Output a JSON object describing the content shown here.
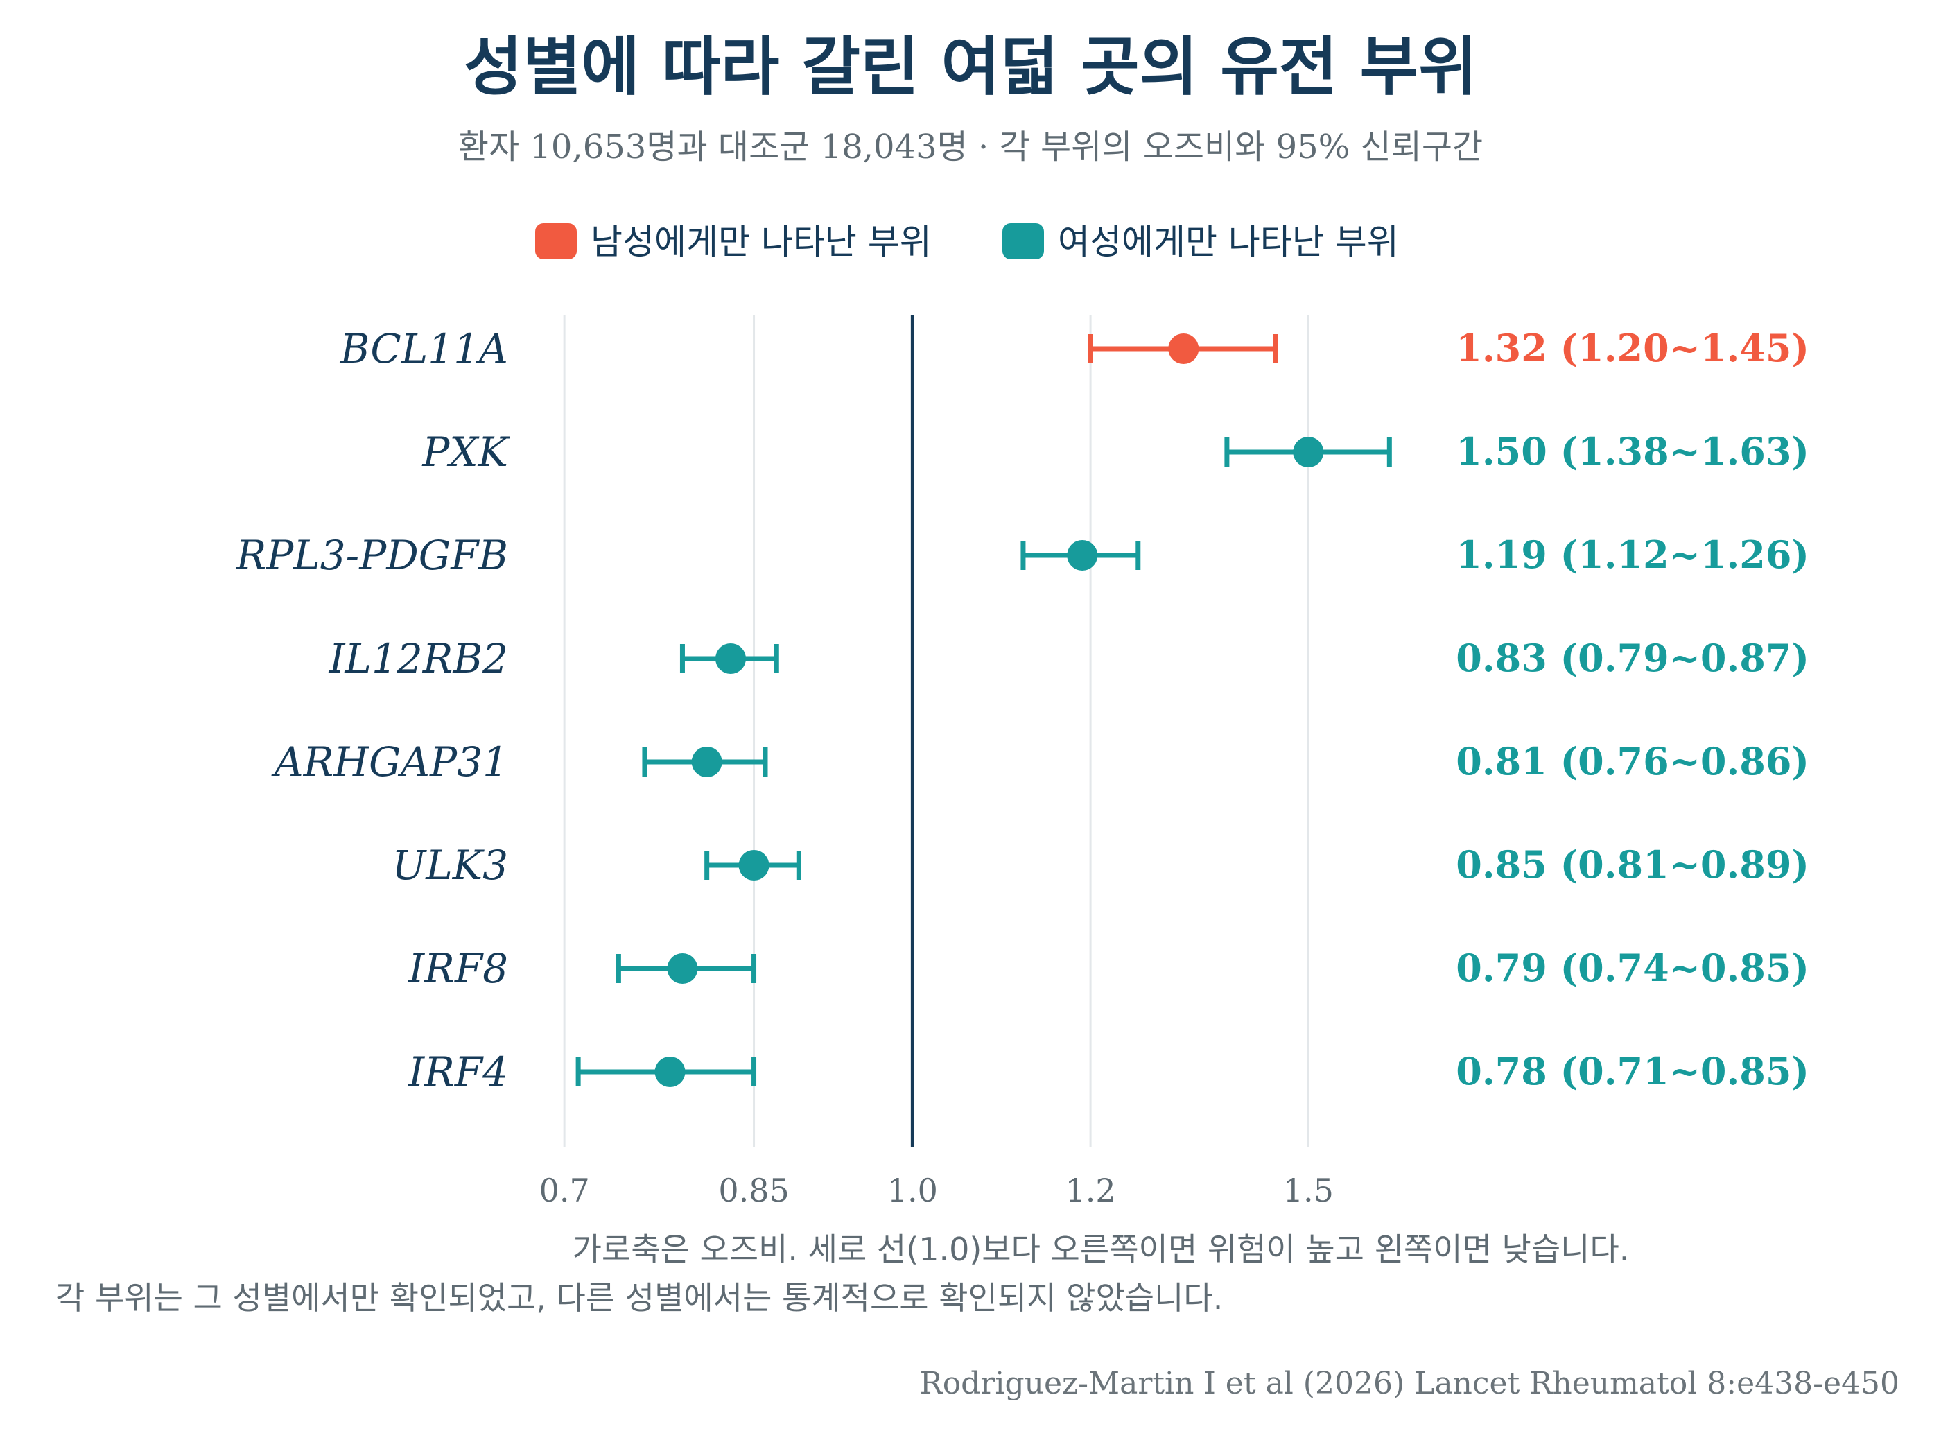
{
  "title": "성별에 따라 갈린 여덟 곳의 유전 부위",
  "subtitle": "환자 10,653명과 대조군 18,043명 · 각 부위의 오즈비와 95% 신뢰구간",
  "legend": [
    {
      "label": "남성에게만 나타난 부위",
      "color": "#f15a40"
    },
    {
      "label": "여성에게만 나타난 부위",
      "color": "#179b9b"
    }
  ],
  "notes": {
    "axis_explanation": "가로축은 오즈비. 세로 선(1.0)보다 오른쪽이면 위험이 높고 왼쪽이면 낮습니다.",
    "specificity": "각 부위는 그 성별에서만 확인되었고, 다른 성별에서는 통계적으로 확인되지 않았습니다."
  },
  "source": "Rodriguez-Martin I et al (2026) Lancet Rheumatol 8:e438-e450",
  "chart_data": {
    "type": "forest",
    "x_scale": "log",
    "xlim": [
      0.693,
      1.72
    ],
    "reference_line": 1.0,
    "x_ticks": [
      {
        "value": 0.7,
        "label": "0.7"
      },
      {
        "value": 0.85,
        "label": "0.85"
      },
      {
        "value": 1.0,
        "label": "1.0"
      },
      {
        "value": 1.2,
        "label": "1.2"
      },
      {
        "value": 1.5,
        "label": "1.5"
      }
    ],
    "rows": [
      {
        "gene": "BCL11A",
        "or": 1.32,
        "lo": 1.2,
        "hi": 1.45,
        "group": "male",
        "label": "1.32 (1.20~1.45)"
      },
      {
        "gene": "PXK",
        "or": 1.5,
        "lo": 1.38,
        "hi": 1.63,
        "group": "female",
        "label": "1.50 (1.38~1.63)"
      },
      {
        "gene": "RPL3-PDGFB",
        "or": 1.19,
        "lo": 1.12,
        "hi": 1.26,
        "group": "female",
        "label": "1.19 (1.12~1.26)"
      },
      {
        "gene": "IL12RB2",
        "or": 0.83,
        "lo": 0.79,
        "hi": 0.87,
        "group": "female",
        "label": "0.83 (0.79~0.87)"
      },
      {
        "gene": "ARHGAP31",
        "or": 0.81,
        "lo": 0.76,
        "hi": 0.86,
        "group": "female",
        "label": "0.81 (0.76~0.86)"
      },
      {
        "gene": "ULK3",
        "or": 0.85,
        "lo": 0.81,
        "hi": 0.89,
        "group": "female",
        "label": "0.85 (0.81~0.89)"
      },
      {
        "gene": "IRF8",
        "or": 0.79,
        "lo": 0.74,
        "hi": 0.85,
        "group": "female",
        "label": "0.79 (0.74~0.85)"
      },
      {
        "gene": "IRF4",
        "or": 0.78,
        "lo": 0.71,
        "hi": 0.85,
        "group": "female",
        "label": "0.78 (0.71~0.85)"
      }
    ],
    "colors": {
      "male": "#f15a40",
      "female": "#179b9b",
      "reference": "#163a58",
      "grid": "#e3e7ea"
    }
  }
}
